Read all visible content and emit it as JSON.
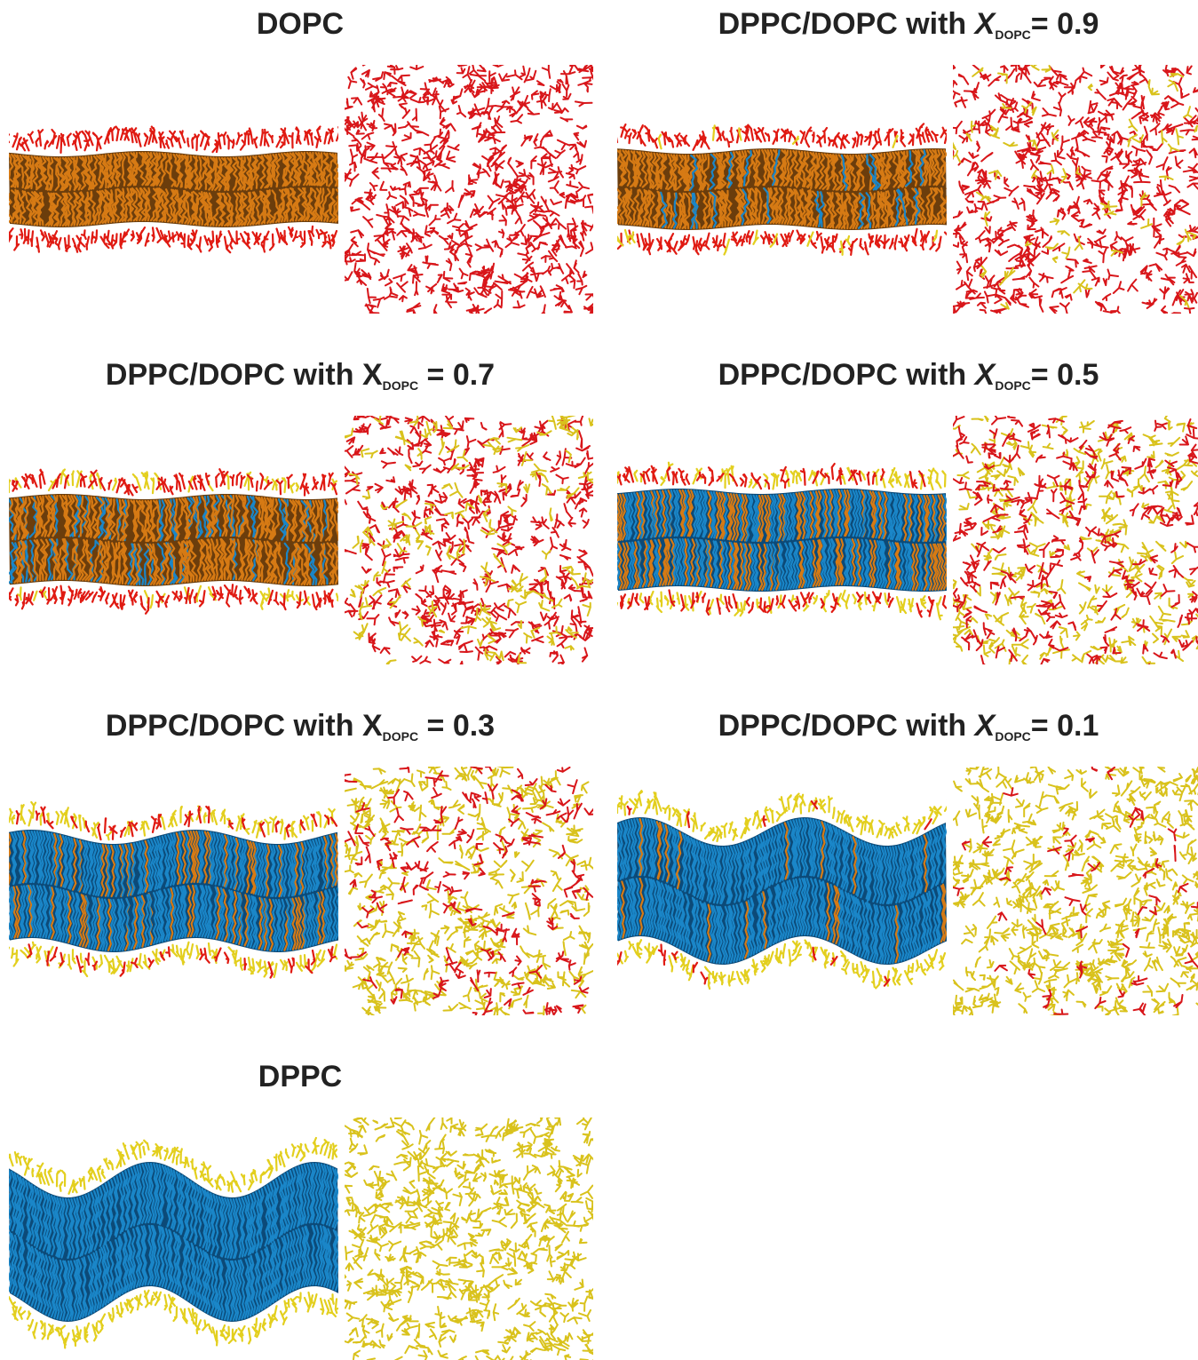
{
  "panels": [
    {
      "title": "DOPC"
    },
    {
      "title": "DPPC/DOPC with ",
      "variable": "X",
      "subscript": "DOPC",
      "suffix": "= 0.9",
      "italic": true
    },
    {
      "title": "DPPC/DOPC with ",
      "variable": "X",
      "subscript": "DOPC",
      "suffix": " = 0.7",
      "italic": false
    },
    {
      "title": "DPPC/DOPC with ",
      "variable": "X",
      "subscript": "DOPC",
      "suffix": "= 0.5",
      "italic": true
    },
    {
      "title": "DPPC/DOPC with ",
      "variable": "X",
      "subscript": "DOPC",
      "suffix": " = 0.3",
      "italic": false
    },
    {
      "title": "DPPC/DOPC with ",
      "variable": "X",
      "subscript": "DOPC",
      "suffix": "= 0.1",
      "italic": true
    },
    {
      "title": "DPPC"
    }
  ]
}
